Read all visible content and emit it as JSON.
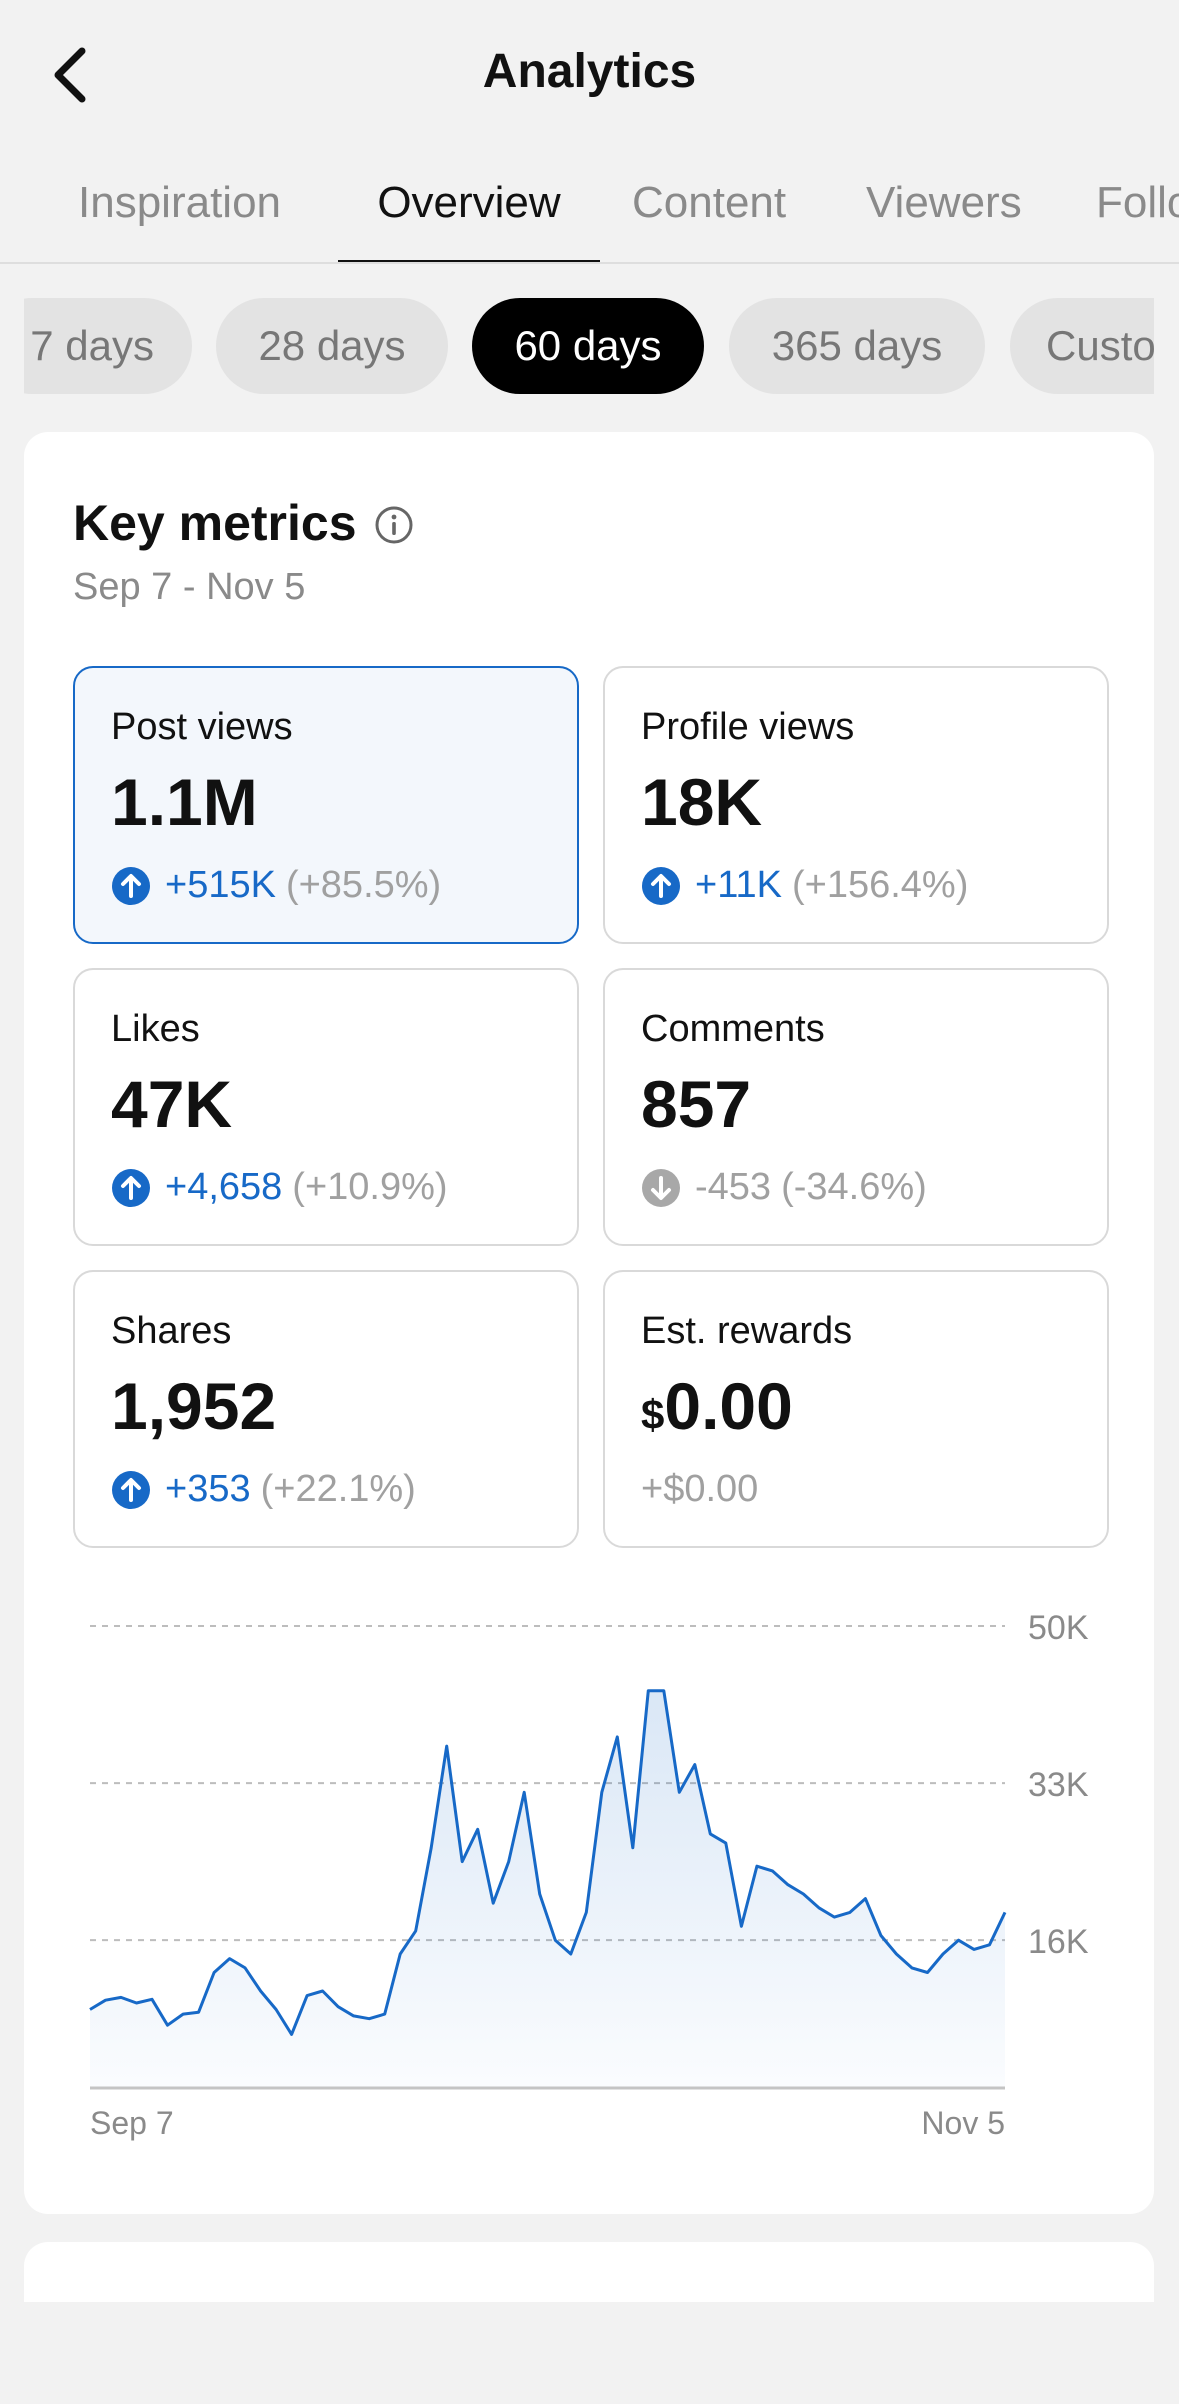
{
  "header": {
    "title": "Analytics",
    "back_icon": "chevron-left-icon"
  },
  "tabs": [
    {
      "label": "Inspiration"
    },
    {
      "label": "Overview",
      "active": true
    },
    {
      "label": "Content"
    },
    {
      "label": "Viewers"
    },
    {
      "label": "Followers"
    }
  ],
  "periods": [
    {
      "label": "7 days"
    },
    {
      "label": "28 days"
    },
    {
      "label": "60 days",
      "active": true
    },
    {
      "label": "365 days"
    },
    {
      "label": "Custom"
    }
  ],
  "key_metrics": {
    "title": "Key metrics",
    "info_icon": "info-icon",
    "date_range": "Sep 7 - Nov 5",
    "metrics": [
      {
        "label": "Post views",
        "value": "1.1M",
        "delta": "+515K",
        "pct": "(+85.5%)",
        "direction": "up",
        "selected": true
      },
      {
        "label": "Profile views",
        "value": "18K",
        "delta": "+11K",
        "pct": "(+156.4%)",
        "direction": "up"
      },
      {
        "label": "Likes",
        "value": "47K",
        "delta": "+4,658",
        "pct": "(+10.9%)",
        "direction": "up"
      },
      {
        "label": "Comments",
        "value": "857",
        "delta": "-453",
        "pct": "(-34.6%)",
        "direction": "down"
      },
      {
        "label": "Shares",
        "value": "1,952",
        "delta": "+353",
        "pct": "(+22.1%)",
        "direction": "up"
      },
      {
        "label": "Est. rewards",
        "currency": "$",
        "value": "0.00",
        "delta": "+$0.00",
        "direction": "flat"
      }
    ]
  },
  "colors": {
    "accent": "#1769c7",
    "selected_bg": "#f3f7fc",
    "muted": "#8a8a8a"
  },
  "chart_data": {
    "type": "area",
    "series": [
      {
        "values": [
          8500,
          9500,
          9800,
          9200,
          9600,
          6800,
          8000,
          8200,
          12500,
          14000,
          13000,
          10500,
          8500,
          5800,
          10000,
          10500,
          8800,
          7800,
          7500,
          8000,
          14500,
          17000,
          26000,
          37000,
          24500,
          28000,
          20000,
          24500,
          32000,
          21000,
          16000,
          14500,
          19000,
          32000,
          38000,
          26000,
          43000,
          43000,
          32000,
          35000,
          27500,
          26500,
          17500,
          24000,
          23500,
          22000,
          21000,
          19500,
          18500,
          19000,
          20500,
          16500,
          14500,
          13000,
          12500,
          14500,
          16000,
          15000,
          15500,
          19000
        ]
      }
    ],
    "x_tick_labels": [
      "Sep 7",
      "Nov 5"
    ],
    "y_tick_labels": [
      "50K",
      "33K",
      "16K"
    ],
    "y_ticks": [
      50000,
      33000,
      16000
    ],
    "ylim": [
      0,
      50000
    ],
    "grid": true
  }
}
